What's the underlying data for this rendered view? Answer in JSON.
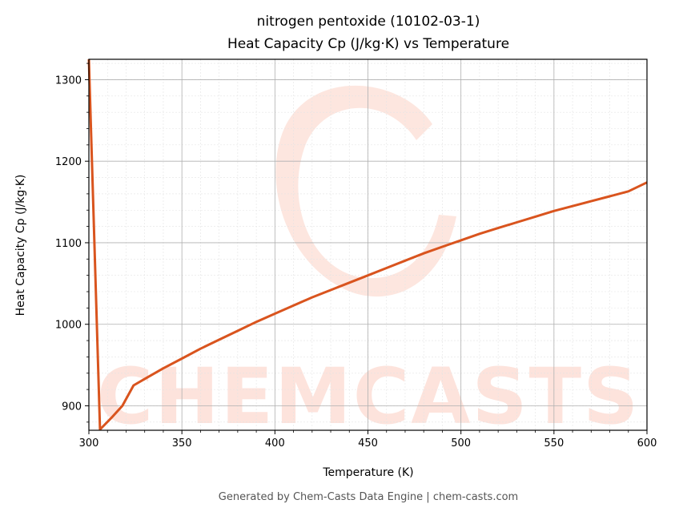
{
  "chart_data": {
    "type": "line",
    "title": "nitrogen pentoxide (10102-03-1)",
    "subtitle": "Heat Capacity Cp (J/kg·K) vs Temperature",
    "xlabel": "Temperature (K)",
    "ylabel": "Heat Capacity Cp (J/kg·K)",
    "xlim": [
      300,
      600
    ],
    "ylim": [
      870,
      1325
    ],
    "x_ticks": [
      300,
      350,
      400,
      450,
      500,
      550,
      600
    ],
    "y_ticks": [
      900,
      1000,
      1100,
      1200,
      1300
    ],
    "grid": true,
    "line_color": "#d9541e",
    "series": [
      {
        "x": [
          300,
          306,
          312,
          318,
          324,
          330,
          340,
          350,
          360,
          370,
          380,
          390,
          400,
          410,
          420,
          430,
          440,
          450,
          460,
          470,
          480,
          490,
          500,
          510,
          520,
          530,
          540,
          550,
          560,
          570,
          580,
          590,
          600
        ],
        "values": [
          1325,
          871,
          885,
          900,
          925,
          933,
          946,
          958,
          970,
          981,
          992,
          1003,
          1013,
          1023,
          1033,
          1042,
          1051,
          1060,
          1069,
          1078,
          1087,
          1095,
          1103,
          1111,
          1118,
          1125,
          1132,
          1139,
          1145,
          1151,
          1157,
          1163,
          1174
        ]
      }
    ]
  },
  "watermark": {
    "text": "CHEMCASTS",
    "color": "#fde3dc"
  },
  "footer": "Generated by Chem-Casts Data Engine | chem-casts.com"
}
